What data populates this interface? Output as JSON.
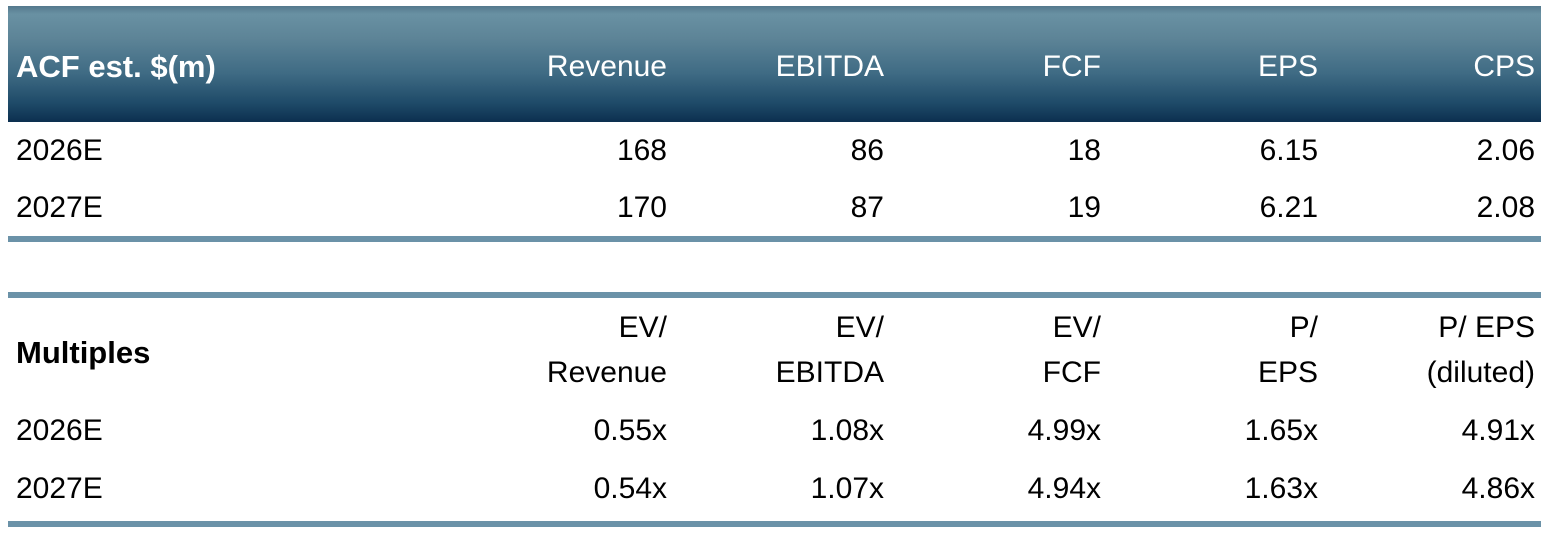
{
  "colors": {
    "header_gradient_top": "#6991a3",
    "header_gradient_bottom": "#0c2f4f",
    "divider_blue": "#6b92a8",
    "header_text": "#ffffff",
    "body_text": "#000000"
  },
  "estimates_table": {
    "title": "ACF est. $(m)",
    "columns": [
      "Revenue",
      "EBITDA",
      "FCF",
      "EPS",
      "CPS"
    ],
    "rows": [
      {
        "label": "2026E",
        "values": [
          "168",
          "86",
          "18",
          "6.15",
          "2.06"
        ]
      },
      {
        "label": "2027E",
        "values": [
          "170",
          "87",
          "19",
          "6.21",
          "2.08"
        ]
      }
    ]
  },
  "multiples_table": {
    "title": "Multiples",
    "columns": [
      {
        "line1": "EV/",
        "line2": "Revenue"
      },
      {
        "line1": "EV/",
        "line2": "EBITDA"
      },
      {
        "line1": "EV/",
        "line2": "FCF"
      },
      {
        "line1": "P/",
        "line2": "EPS"
      },
      {
        "line1": "P/ EPS",
        "line2": "(diluted)"
      }
    ],
    "rows": [
      {
        "label": "2026E",
        "values": [
          "0.55x",
          "1.08x",
          "4.99x",
          "1.65x",
          "4.91x"
        ]
      },
      {
        "label": "2027E",
        "values": [
          "0.54x",
          "1.07x",
          "4.94x",
          "1.63x",
          "4.86x"
        ]
      }
    ]
  },
  "chart_data": [
    {
      "type": "table",
      "title": "ACF est. $(m)",
      "columns": [
        "",
        "Revenue",
        "EBITDA",
        "FCF",
        "EPS",
        "CPS"
      ],
      "rows": [
        [
          "2026E",
          168,
          86,
          18,
          6.15,
          2.06
        ],
        [
          "2027E",
          170,
          87,
          19,
          6.21,
          2.08
        ]
      ]
    },
    {
      "type": "table",
      "title": "Multiples",
      "columns": [
        "",
        "EV/ Revenue",
        "EV/ EBITDA",
        "EV/ FCF",
        "P/ EPS",
        "P/ EPS (diluted)"
      ],
      "rows": [
        [
          "2026E",
          "0.55x",
          "1.08x",
          "4.99x",
          "1.65x",
          "4.91x"
        ],
        [
          "2027E",
          "0.54x",
          "1.07x",
          "4.94x",
          "1.63x",
          "4.86x"
        ]
      ]
    }
  ]
}
